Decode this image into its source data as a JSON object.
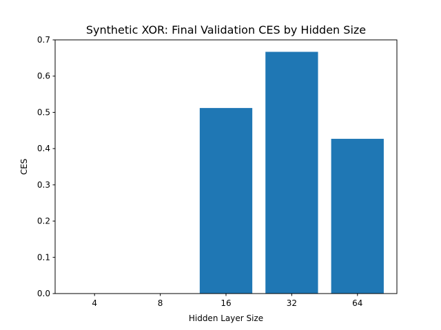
{
  "chart_data": {
    "type": "bar",
    "title": "Synthetic XOR: Final Validation CES by Hidden Size",
    "xlabel": "Hidden Layer Size",
    "ylabel": "CES",
    "categories": [
      "4",
      "8",
      "16",
      "32",
      "64"
    ],
    "values": [
      0.0,
      0.0,
      0.512,
      0.667,
      0.427
    ],
    "ylim": [
      0,
      0.7
    ],
    "yticks": [
      "0.0",
      "0.1",
      "0.2",
      "0.3",
      "0.4",
      "0.5",
      "0.6",
      "0.7"
    ],
    "grid": false,
    "bar_color": "#1f77b4"
  }
}
